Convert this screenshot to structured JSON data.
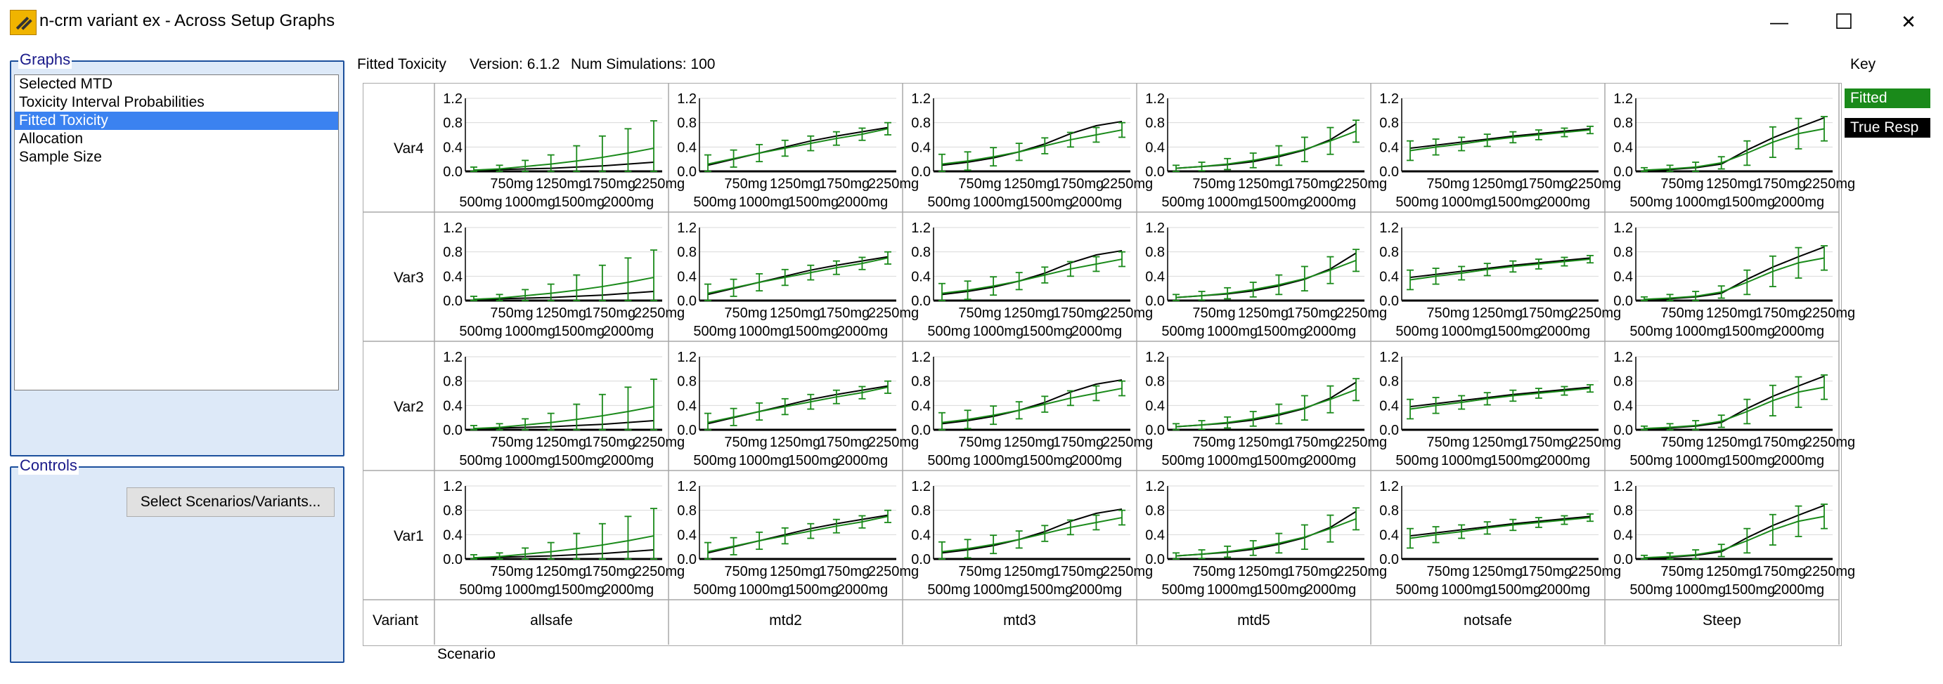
{
  "window": {
    "title": "n-crm variant ex - Across Setup Graphs",
    "minimize": "—",
    "maximize": "☐",
    "close": "✕"
  },
  "graphs_panel": {
    "label": "Graphs",
    "items": [
      "Selected MTD",
      "Toxicity Interval Probabilities",
      "Fitted Toxicity",
      "Allocation",
      "Sample Size"
    ],
    "selected_index": 2
  },
  "controls_panel": {
    "label": "Controls",
    "select_button": "Select Scenarios/Variants..."
  },
  "header": {
    "graph_title": "Fitted Toxicity",
    "version": "Version: 6.1.2",
    "num_simulations": "Num Simulations: 100"
  },
  "key": {
    "title": "Key",
    "entries": [
      {
        "label": "Fitted",
        "color": "#1a8a1a"
      },
      {
        "label": "True Resp",
        "color": "#000000"
      }
    ]
  },
  "axis_labels": {
    "variant": "Variant",
    "scenario": "Scenario"
  },
  "colors": {
    "fitted": "#1a8a1a",
    "true_resp": "#000000",
    "panel": "#dde9f8",
    "border": "#1c4f9c",
    "selection": "#3b82f0"
  },
  "chart_data": {
    "type": "line",
    "yticks": [
      "1.2",
      "0.8",
      "0.4",
      "0.0"
    ],
    "ylim": [
      0,
      1.2
    ],
    "x_labels_row1": [
      "750mg",
      "1250mg",
      "1750mg",
      "2250mg"
    ],
    "x_labels_row2": [
      "500mg",
      "1000mg",
      "1500mg",
      "2000mg"
    ],
    "scenarios": [
      "allsafe",
      "mtd2",
      "mtd3",
      "mtd5",
      "notsafe",
      "Steep"
    ],
    "variants": [
      "Var4",
      "Var3",
      "Var2",
      "Var1"
    ],
    "doses": [
      "500mg",
      "750mg",
      "1000mg",
      "1250mg",
      "1500mg",
      "1750mg",
      "2000mg",
      "2250mg"
    ],
    "series": [
      {
        "name": "True Resp",
        "scenario": "allsafe",
        "values": [
          0.02,
          0.03,
          0.04,
          0.05,
          0.07,
          0.09,
          0.12,
          0.15
        ]
      },
      {
        "name": "Fitted",
        "scenario": "allsafe",
        "values": [
          0.02,
          0.04,
          0.08,
          0.12,
          0.17,
          0.23,
          0.3,
          0.38
        ],
        "err": [
          0.05,
          0.06,
          0.1,
          0.15,
          0.25,
          0.35,
          0.4,
          0.45
        ]
      },
      {
        "name": "True Resp",
        "scenario": "mtd2",
        "values": [
          0.1,
          0.2,
          0.3,
          0.4,
          0.5,
          0.58,
          0.65,
          0.72
        ]
      },
      {
        "name": "Fitted",
        "scenario": "mtd2",
        "values": [
          0.12,
          0.21,
          0.3,
          0.38,
          0.46,
          0.54,
          0.61,
          0.7
        ],
        "err": [
          0.15,
          0.14,
          0.14,
          0.13,
          0.12,
          0.11,
          0.1,
          0.1
        ]
      },
      {
        "name": "True Resp",
        "scenario": "mtd3",
        "values": [
          0.1,
          0.15,
          0.22,
          0.32,
          0.45,
          0.62,
          0.75,
          0.82
        ]
      },
      {
        "name": "Fitted",
        "scenario": "mtd3",
        "values": [
          0.12,
          0.17,
          0.24,
          0.32,
          0.42,
          0.52,
          0.6,
          0.68
        ],
        "err": [
          0.16,
          0.15,
          0.15,
          0.14,
          0.13,
          0.12,
          0.12,
          0.12
        ]
      },
      {
        "name": "True Resp",
        "scenario": "mtd5",
        "values": [
          0.05,
          0.08,
          0.11,
          0.16,
          0.24,
          0.35,
          0.52,
          0.78
        ]
      },
      {
        "name": "Fitted",
        "scenario": "mtd5",
        "values": [
          0.05,
          0.08,
          0.12,
          0.18,
          0.26,
          0.36,
          0.5,
          0.66
        ],
        "err": [
          0.05,
          0.07,
          0.09,
          0.12,
          0.16,
          0.2,
          0.22,
          0.18
        ]
      },
      {
        "name": "True Resp",
        "scenario": "notsafe",
        "values": [
          0.38,
          0.43,
          0.48,
          0.53,
          0.58,
          0.62,
          0.66,
          0.7
        ]
      },
      {
        "name": "Fitted",
        "scenario": "notsafe",
        "values": [
          0.34,
          0.4,
          0.45,
          0.51,
          0.56,
          0.6,
          0.64,
          0.68
        ],
        "err": [
          0.16,
          0.13,
          0.11,
          0.1,
          0.09,
          0.08,
          0.07,
          0.06
        ]
      },
      {
        "name": "True Resp",
        "scenario": "Steep",
        "values": [
          0.02,
          0.03,
          0.06,
          0.12,
          0.35,
          0.55,
          0.72,
          0.88
        ]
      },
      {
        "name": "Fitted",
        "scenario": "Steep",
        "values": [
          0.02,
          0.04,
          0.07,
          0.14,
          0.3,
          0.48,
          0.62,
          0.7
        ],
        "err": [
          0.04,
          0.06,
          0.08,
          0.1,
          0.2,
          0.25,
          0.25,
          0.2
        ]
      }
    ]
  }
}
